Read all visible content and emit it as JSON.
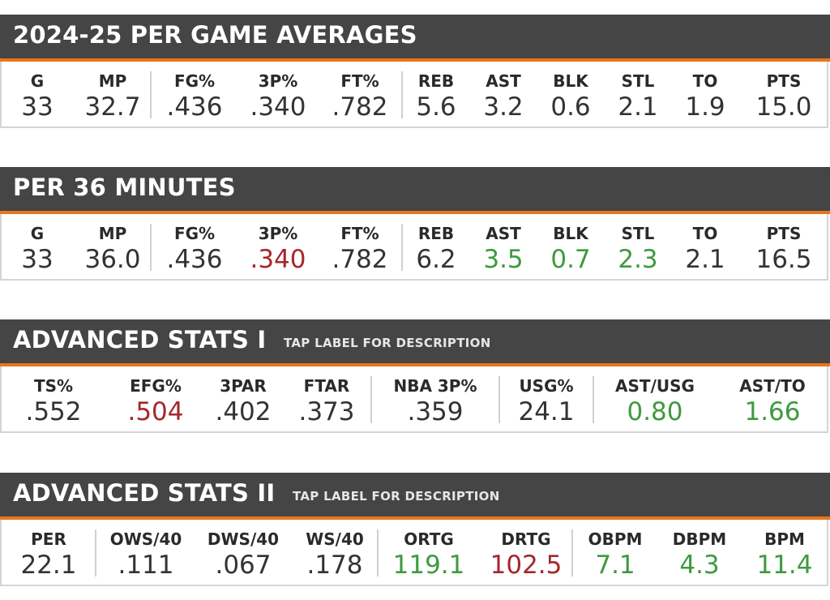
{
  "colors": {
    "header_bg": "#454545",
    "accent": "#e9761c",
    "good": "#3e9a3e",
    "bad": "#a5272c",
    "neutral": "#333333"
  },
  "sections": [
    {
      "title": "2024-25 PER GAME AVERAGES",
      "subtitle": "",
      "stats": [
        {
          "label": "G",
          "value": "33",
          "tone": "neutral"
        },
        {
          "label": "MP",
          "value": "32.7",
          "tone": "neutral"
        },
        {
          "label": "FG%",
          "value": ".436",
          "tone": "neutral"
        },
        {
          "label": "3P%",
          "value": ".340",
          "tone": "neutral"
        },
        {
          "label": "FT%",
          "value": ".782",
          "tone": "neutral"
        },
        {
          "label": "REB",
          "value": "5.6",
          "tone": "neutral"
        },
        {
          "label": "AST",
          "value": "3.2",
          "tone": "neutral"
        },
        {
          "label": "BLK",
          "value": "0.6",
          "tone": "neutral"
        },
        {
          "label": "STL",
          "value": "2.1",
          "tone": "neutral"
        },
        {
          "label": "TO",
          "value": "1.9",
          "tone": "neutral"
        },
        {
          "label": "PTS",
          "value": "15.0",
          "tone": "neutral"
        }
      ]
    },
    {
      "title": "PER 36 MINUTES",
      "subtitle": "",
      "stats": [
        {
          "label": "G",
          "value": "33",
          "tone": "neutral"
        },
        {
          "label": "MP",
          "value": "36.0",
          "tone": "neutral"
        },
        {
          "label": "FG%",
          "value": ".436",
          "tone": "neutral"
        },
        {
          "label": "3P%",
          "value": ".340",
          "tone": "bad"
        },
        {
          "label": "FT%",
          "value": ".782",
          "tone": "neutral"
        },
        {
          "label": "REB",
          "value": "6.2",
          "tone": "neutral"
        },
        {
          "label": "AST",
          "value": "3.5",
          "tone": "good"
        },
        {
          "label": "BLK",
          "value": "0.7",
          "tone": "good"
        },
        {
          "label": "STL",
          "value": "2.3",
          "tone": "good"
        },
        {
          "label": "TO",
          "value": "2.1",
          "tone": "neutral"
        },
        {
          "label": "PTS",
          "value": "16.5",
          "tone": "neutral"
        }
      ]
    },
    {
      "title": "ADVANCED STATS I",
      "subtitle": "TAP LABEL FOR DESCRIPTION",
      "stats": [
        {
          "label": "TS%",
          "value": ".552",
          "tone": "neutral"
        },
        {
          "label": "EFG%",
          "value": ".504",
          "tone": "bad"
        },
        {
          "label": "3PAR",
          "value": ".402",
          "tone": "neutral"
        },
        {
          "label": "FTAR",
          "value": ".373",
          "tone": "neutral"
        },
        {
          "label": "NBA 3P%",
          "value": ".359",
          "tone": "neutral"
        },
        {
          "label": "USG%",
          "value": "24.1",
          "tone": "neutral"
        },
        {
          "label": "AST/USG",
          "value": "0.80",
          "tone": "good"
        },
        {
          "label": "AST/TO",
          "value": "1.66",
          "tone": "good"
        }
      ]
    },
    {
      "title": "ADVANCED STATS II",
      "subtitle": "TAP LABEL FOR DESCRIPTION",
      "stats": [
        {
          "label": "PER",
          "value": "22.1",
          "tone": "neutral"
        },
        {
          "label": "OWS/40",
          "value": ".111",
          "tone": "neutral"
        },
        {
          "label": "DWS/40",
          "value": ".067",
          "tone": "neutral"
        },
        {
          "label": "WS/40",
          "value": ".178",
          "tone": "neutral"
        },
        {
          "label": "ORTG",
          "value": "119.1",
          "tone": "good"
        },
        {
          "label": "DRTG",
          "value": "102.5",
          "tone": "bad"
        },
        {
          "label": "OBPM",
          "value": "7.1",
          "tone": "good"
        },
        {
          "label": "DBPM",
          "value": "4.3",
          "tone": "good"
        },
        {
          "label": "BPM",
          "value": "11.4",
          "tone": "good"
        }
      ]
    }
  ]
}
